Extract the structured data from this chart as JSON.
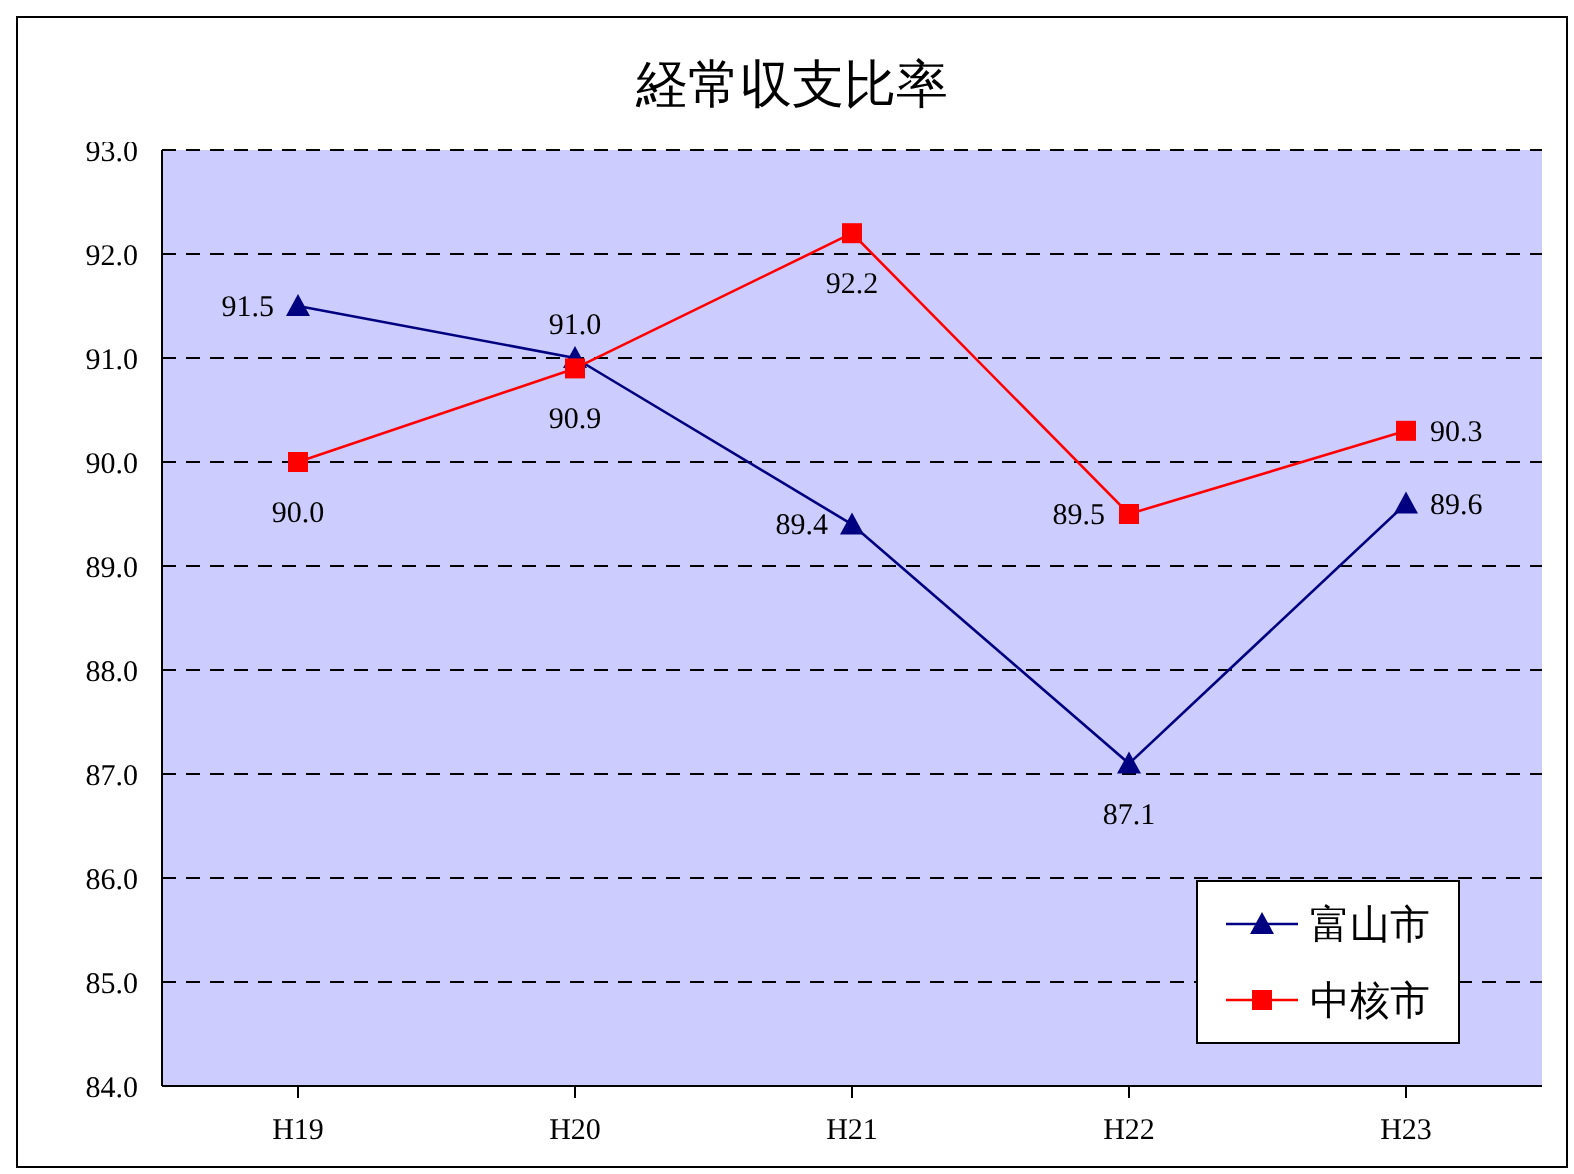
{
  "chart_data": {
    "type": "line",
    "title": "経常収支比率",
    "categories": [
      "H19",
      "H20",
      "H21",
      "H22",
      "H23"
    ],
    "series": [
      {
        "name": "富山市",
        "color": "#000080",
        "marker": "triangle",
        "values": [
          91.5,
          91.0,
          89.4,
          87.1,
          89.6
        ],
        "value_labels": [
          "91.5",
          "91.0",
          "89.4",
          "87.1",
          "89.6"
        ]
      },
      {
        "name": "中核市",
        "color": "#ff0000",
        "marker": "square",
        "values": [
          90.0,
          90.9,
          92.2,
          89.5,
          90.3
        ],
        "value_labels": [
          "90.0",
          "90.9",
          "92.2",
          "89.5",
          "90.3"
        ]
      }
    ],
    "ylim": [
      84,
      93
    ],
    "yticks": [
      {
        "value": 84,
        "label": "84.0"
      },
      {
        "value": 85,
        "label": "85.0"
      },
      {
        "value": 86,
        "label": "86.0"
      },
      {
        "value": 87,
        "label": "87.0"
      },
      {
        "value": 88,
        "label": "88.0"
      },
      {
        "value": 89,
        "label": "89.0"
      },
      {
        "value": 90,
        "label": "90.0"
      },
      {
        "value": 91,
        "label": "91.0"
      },
      {
        "value": 92,
        "label": "92.0"
      },
      {
        "value": 93,
        "label": "93.0"
      }
    ],
    "grid": "y",
    "legend": "bottom right",
    "line_style": "solid"
  }
}
